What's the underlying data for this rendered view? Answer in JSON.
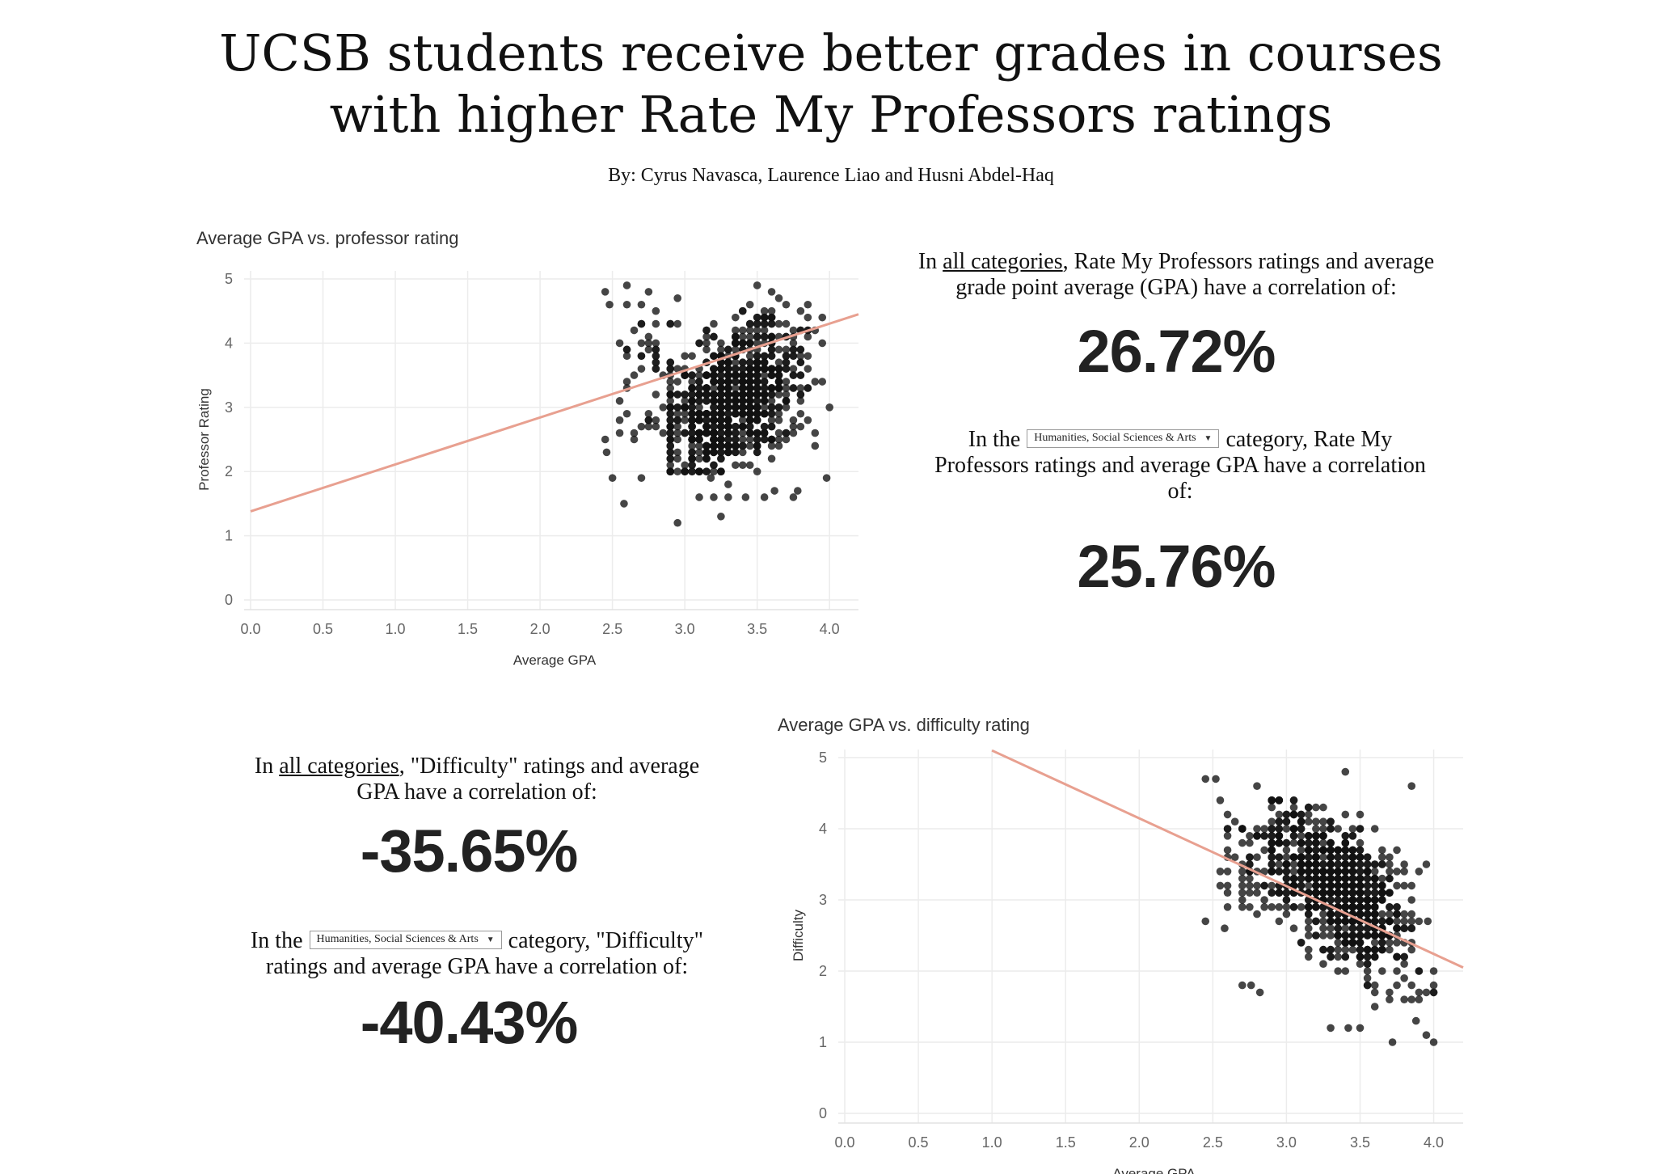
{
  "header": {
    "title_line1": "UCSB students receive better grades in courses",
    "title_line2": "with higher Rate My Professors ratings",
    "byline": "By: Cyrus Navasca, Laurence Liao and Husni Abdel-Haq"
  },
  "colors": {
    "trend": "#e8a090",
    "points": "#111111",
    "grid": "#ececec"
  },
  "stats": {
    "rating": {
      "all_prefix": "In ",
      "all_link": "all categories",
      "all_text": ", Rate My Professors ratings and average grade point average (GPA) have a correlation of:",
      "all_value": "26.72%",
      "cat_prefix": "In the",
      "cat_selected": "Humanities, Social Sciences & Arts",
      "cat_text": "category, Rate My Professors ratings and average GPA have a correlation of:",
      "cat_value": "25.76%"
    },
    "difficulty": {
      "all_prefix": "In ",
      "all_link": "all categories",
      "all_text": ", \"Difficulty\" ratings and average GPA have a correlation of:",
      "all_value": "-35.65%",
      "cat_prefix": "In the",
      "cat_selected": "Humanities, Social Sciences & Arts",
      "cat_text": "category, \"Difficulty\" ratings and average GPA have a correlation of:",
      "cat_value": "-40.43%"
    }
  },
  "chart_data": [
    {
      "type": "scatter",
      "title": "Average GPA vs. professor rating",
      "xlabel": "Average GPA",
      "ylabel": "Professor Rating",
      "xlim": [
        0,
        4.2
      ],
      "ylim": [
        0,
        5
      ],
      "xticks": [
        "0.0",
        "0.5",
        "1.0",
        "1.5",
        "2.0",
        "2.5",
        "3.0",
        "3.5",
        "4.0"
      ],
      "yticks": [
        "0",
        "1",
        "2",
        "3",
        "4",
        "5"
      ],
      "grid": true,
      "trendline": {
        "x": [
          0,
          4.2
        ],
        "y": [
          1.38,
          4.45
        ]
      },
      "cluster": {
        "x_center": 3.35,
        "x_spread": 0.3,
        "x_min": 2.45,
        "x_max": 4.0,
        "y_min": 1.2,
        "y_max": 5.0,
        "direction": "positive"
      },
      "points": [
        [
          2.45,
          4.8
        ],
        [
          2.48,
          4.6
        ],
        [
          2.6,
          4.9
        ],
        [
          2.55,
          2.6
        ],
        [
          2.45,
          2.5
        ],
        [
          2.46,
          2.3
        ],
        [
          2.5,
          1.9
        ],
        [
          2.58,
          1.5
        ],
        [
          2.95,
          1.2
        ],
        [
          3.25,
          1.3
        ],
        [
          2.7,
          1.9
        ],
        [
          3.98,
          1.9
        ],
        [
          3.78,
          1.7
        ],
        [
          3.75,
          1.6
        ],
        [
          3.55,
          1.6
        ],
        [
          3.62,
          1.7
        ],
        [
          3.1,
          1.6
        ],
        [
          3.2,
          1.6
        ],
        [
          3.3,
          1.6
        ],
        [
          3.42,
          1.6
        ],
        [
          3.3,
          1.8
        ],
        [
          3.18,
          1.9
        ],
        [
          3.0,
          2.0
        ],
        [
          3.05,
          2.1
        ]
      ]
    },
    {
      "type": "scatter",
      "title": "Average GPA vs. difficulty rating",
      "xlabel": "Average GPA",
      "ylabel": "Difficulty",
      "xlim": [
        0,
        4.2
      ],
      "ylim": [
        0,
        5
      ],
      "xticks": [
        "0.0",
        "0.5",
        "1.0",
        "1.5",
        "2.0",
        "2.5",
        "3.0",
        "3.5",
        "4.0"
      ],
      "yticks": [
        "0",
        "1",
        "2",
        "3",
        "4",
        "5"
      ],
      "grid": true,
      "trendline": {
        "x": [
          1.0,
          4.2
        ],
        "y": [
          5.1,
          2.05
        ]
      },
      "cluster": {
        "x_center": 3.35,
        "x_spread": 0.3,
        "x_min": 2.42,
        "x_max": 4.0,
        "y_min": 1.0,
        "y_max": 4.8,
        "direction": "negative"
      },
      "points": [
        [
          2.45,
          4.7
        ],
        [
          2.52,
          4.7
        ],
        [
          2.45,
          2.7
        ],
        [
          2.58,
          2.6
        ],
        [
          2.7,
          1.8
        ],
        [
          2.76,
          1.8
        ],
        [
          2.82,
          1.7
        ],
        [
          3.5,
          1.2
        ],
        [
          3.3,
          1.2
        ],
        [
          3.42,
          1.2
        ],
        [
          3.72,
          1.0
        ],
        [
          4.0,
          1.0
        ],
        [
          3.95,
          1.1
        ],
        [
          3.88,
          1.3
        ],
        [
          4.0,
          1.7
        ],
        [
          3.96,
          2.7
        ],
        [
          3.95,
          3.5
        ],
        [
          3.85,
          4.6
        ],
        [
          3.4,
          4.8
        ],
        [
          2.8,
          4.6
        ],
        [
          2.6,
          4.2
        ],
        [
          2.55,
          4.4
        ]
      ]
    }
  ]
}
